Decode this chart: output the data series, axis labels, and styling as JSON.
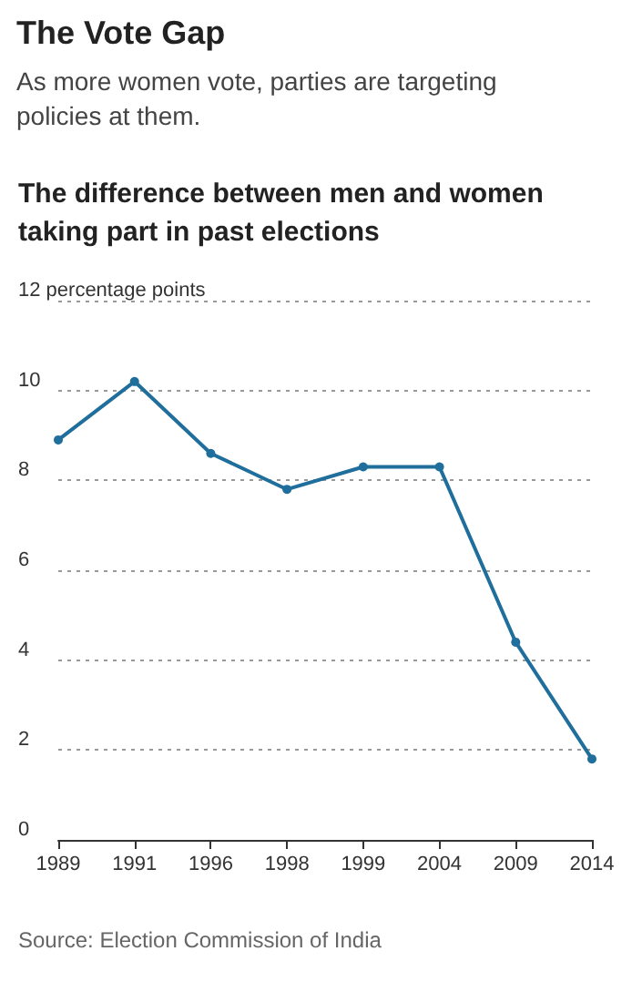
{
  "chart_data": {
    "type": "line",
    "title": "The Vote Gap",
    "subtitle": "As more women vote, parties are targeting policies at them.",
    "annotations": [
      "The difference between men and women taking part in past elections",
      "Source: Election Commission of India"
    ],
    "categories": [
      "1989",
      "1991",
      "1996",
      "1998",
      "1999",
      "2004",
      "2009",
      "2014"
    ],
    "series": [
      {
        "color": "#1f6e9c",
        "values": [
          8.9,
          10.2,
          8.6,
          7.8,
          8.3,
          8.3,
          4.4,
          1.8
        ]
      }
    ],
    "ylim": [
      0,
      12
    ],
    "yticks": [
      0,
      2,
      4,
      6,
      8,
      10,
      {
        "value": 12,
        "label": "12 percentage points"
      }
    ],
    "grid": "y",
    "marker": "circle",
    "line_style": "solid"
  }
}
